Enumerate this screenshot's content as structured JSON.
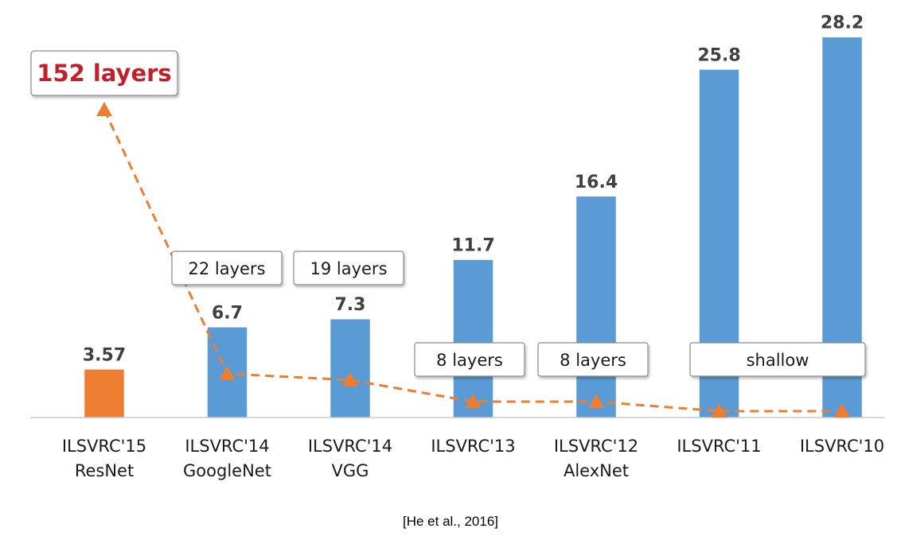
{
  "chart_data": {
    "type": "bar",
    "categories": [
      [
        "ILSVRC'15",
        "ResNet"
      ],
      [
        "ILSVRC'14",
        "GoogleNet"
      ],
      [
        "ILSVRC'14",
        "VGG"
      ],
      [
        "ILSVRC'13"
      ],
      [
        "ILSVRC'12",
        "AlexNet"
      ],
      [
        "ILSVRC'11"
      ],
      [
        "ILSVRC'10"
      ]
    ],
    "values": [
      3.57,
      6.7,
      7.3,
      11.7,
      16.4,
      25.8,
      28.2
    ],
    "value_labels": [
      "3.57",
      "6.7",
      "7.3",
      "11.7",
      "16.4",
      "25.8",
      "28.2"
    ],
    "bar_colors": [
      "#ED7D31",
      "#5B9BD5",
      "#5B9BD5",
      "#5B9BD5",
      "#5B9BD5",
      "#5B9BD5",
      "#5B9BD5"
    ],
    "ylim": [
      0,
      30
    ],
    "grid": false,
    "title": "",
    "xlabel": "",
    "ylabel": "",
    "depth_series": {
      "line_style": "dashed",
      "marker": "triangle",
      "color": "#ED7D31",
      "values": [
        152,
        22,
        19,
        8,
        8,
        0,
        0
      ]
    },
    "layer_labels": [
      {
        "text": "152 layers",
        "category_index": 0,
        "highlight": true
      },
      {
        "text": "22 layers",
        "category_index": 1
      },
      {
        "text": "19 layers",
        "category_index": 2
      },
      {
        "text": "8 layers",
        "category_index": 3
      },
      {
        "text": "8 layers",
        "category_index": 4
      },
      {
        "text": "shallow",
        "category_index": 5,
        "span": 2
      }
    ],
    "highlight_color": "#C0202A",
    "highlight_border": "#E07A3A"
  },
  "citation": "[He et al., 2016]"
}
